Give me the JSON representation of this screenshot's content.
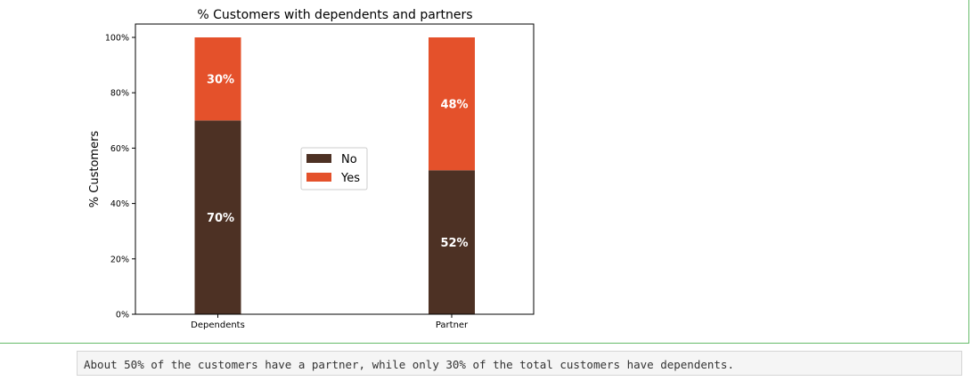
{
  "chart_data": {
    "type": "bar",
    "stacked": true,
    "title": "% Customers with dependents and partners",
    "xlabel": "",
    "ylabel": "% Customers",
    "categories": [
      "Dependents",
      "Partner"
    ],
    "series": [
      {
        "name": "No",
        "color": "#4d3124",
        "values": [
          70,
          52
        ],
        "labels": [
          "70%",
          "52%"
        ]
      },
      {
        "name": "Yes",
        "color": "#e4512b",
        "values": [
          30,
          48
        ],
        "labels": [
          "30%",
          "48%"
        ]
      }
    ],
    "ylim": [
      0,
      100
    ],
    "yticks": [
      0,
      20,
      40,
      60,
      80,
      100
    ],
    "ytick_labels": [
      "0%",
      "20%",
      "40%",
      "60%",
      "80%",
      "100%"
    ],
    "legend_position": "center",
    "grid": false
  },
  "note": {
    "text": "About 50% of the customers have a partner, while only 30% of the total customers have dependents."
  }
}
